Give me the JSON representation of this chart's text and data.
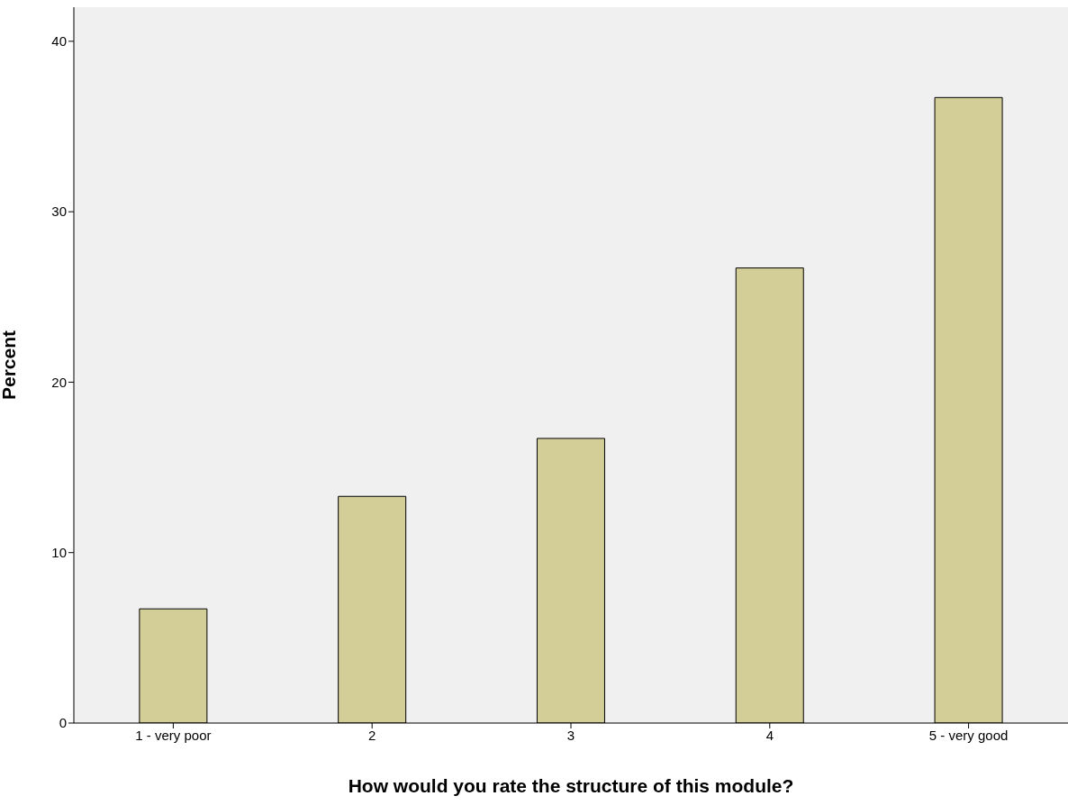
{
  "chart_data": {
    "type": "bar",
    "xlabel": "How would you rate the structure of this module?",
    "ylabel": "Percent",
    "categories": [
      "1 - very poor",
      "2",
      "3",
      "4",
      "5 - very good"
    ],
    "values": [
      6.7,
      13.3,
      16.7,
      26.7,
      36.7
    ],
    "color": "#d3ce97",
    "ylim": [
      0,
      42
    ],
    "yticks": [
      0,
      10,
      20,
      30,
      40
    ],
    "grid": false
  }
}
